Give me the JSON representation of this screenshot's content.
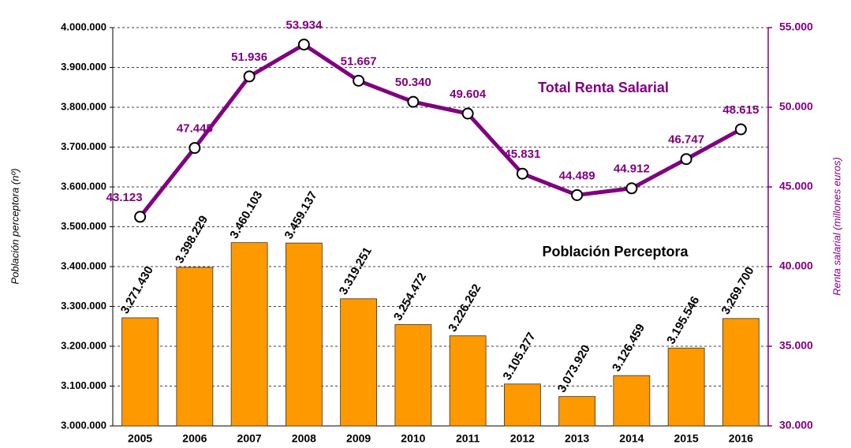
{
  "chart_data": {
    "type": "bar",
    "ylabel": "Población perceptora (nº)",
    "y2label": "Renta salarial (millones euros)",
    "categories": [
      "2005",
      "2006",
      "2007",
      "2008",
      "2009",
      "2010",
      "2011",
      "2012",
      "2013",
      "2014",
      "2015",
      "2016"
    ],
    "series": [
      {
        "name": "Población Perceptora",
        "type": "bar",
        "color": "#ff9900",
        "values": [
          3271430,
          3398229,
          3460103,
          3459137,
          3319251,
          3254472,
          3226262,
          3105277,
          3073920,
          3126459,
          3195546,
          3269700
        ],
        "value_labels": [
          "3.271.430",
          "3.398.229",
          "3.460.103",
          "3.459.137",
          "3.319.251",
          "3.254.472",
          "3.226.262",
          "3.105.277",
          "3.073.920",
          "3.126.459",
          "3.195.546",
          "3.269.700"
        ]
      },
      {
        "name": "Total Renta Salarial",
        "type": "line",
        "axis": "y2",
        "color": "#800080",
        "values": [
          43123,
          47445,
          51936,
          53934,
          51667,
          50340,
          49604,
          45831,
          44489,
          44912,
          46747,
          48615
        ],
        "value_labels": [
          "43.123",
          "47.445",
          "51.936",
          "53.934",
          "51.667",
          "50.340",
          "49.604",
          "45.831",
          "44.489",
          "44.912",
          "46.747",
          "48.615"
        ]
      }
    ],
    "ylim": [
      3000000,
      4000000
    ],
    "yticks": [
      {
        "value": 3000000,
        "label": "3.000.000"
      },
      {
        "value": 3100000,
        "label": "3.100.000"
      },
      {
        "value": 3200000,
        "label": "3.200.000"
      },
      {
        "value": 3300000,
        "label": "3.300.000"
      },
      {
        "value": 3400000,
        "label": "3.400.000"
      },
      {
        "value": 3500000,
        "label": "3.500.000"
      },
      {
        "value": 3600000,
        "label": "3.600.000"
      },
      {
        "value": 3700000,
        "label": "3.700.000"
      },
      {
        "value": 3800000,
        "label": "3.800.000"
      },
      {
        "value": 3900000,
        "label": "3.900.000"
      },
      {
        "value": 4000000,
        "label": "4.000.000"
      }
    ],
    "y2lim": [
      30000,
      55000
    ],
    "y2ticks": [
      {
        "value": 30000,
        "label": "30.000"
      },
      {
        "value": 35000,
        "label": "35.000"
      },
      {
        "value": 40000,
        "label": "40.000"
      },
      {
        "value": 45000,
        "label": "45.000"
      },
      {
        "value": 50000,
        "label": "50.000"
      },
      {
        "value": 55000,
        "label": "55.000"
      }
    ],
    "grid": true
  }
}
